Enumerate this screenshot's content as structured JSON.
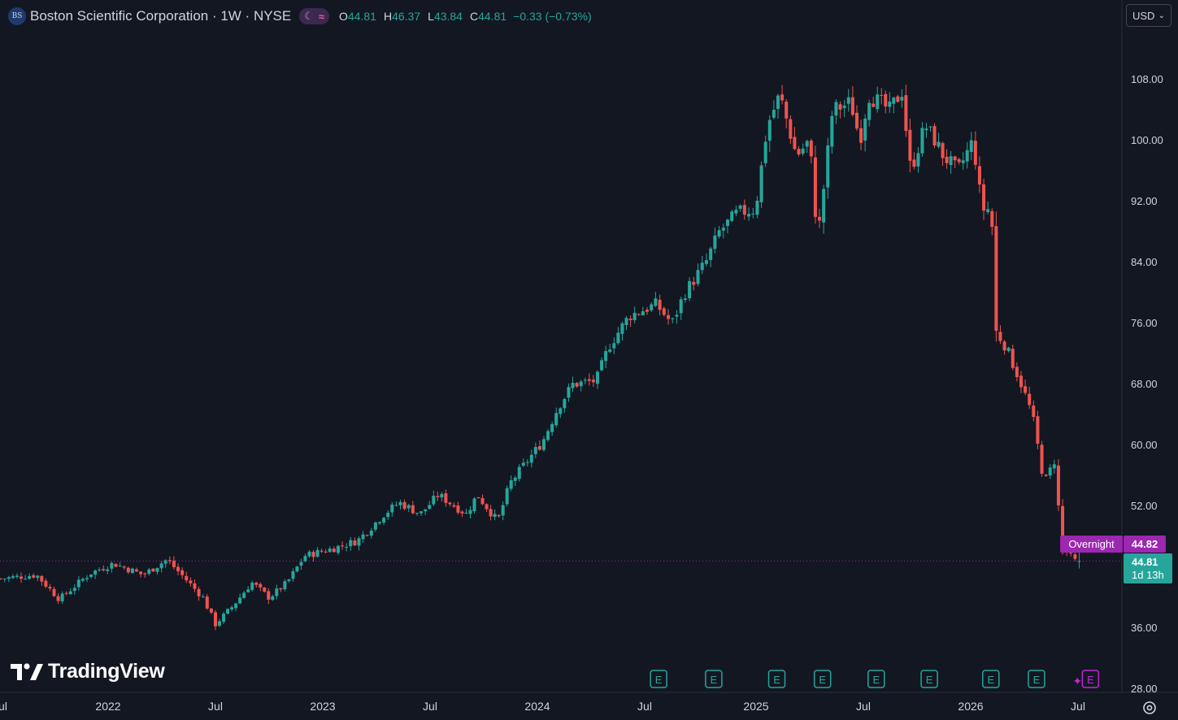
{
  "header": {
    "logo_text": "BS",
    "symbol_line": "Boston Scientific Corporation · 1W · NYSE",
    "session_icons": [
      "moon-icon",
      "wave-icon"
    ],
    "ohlc": {
      "o_label": "O",
      "o_value": "44.81",
      "h_label": "H",
      "h_value": "46.37",
      "l_label": "L",
      "l_value": "43.84",
      "c_label": "C",
      "c_value": "44.81",
      "change": "−0.33 (−0.73%)"
    }
  },
  "currency": {
    "label": "USD",
    "icon": "chevron-down-icon"
  },
  "price_axis": [
    "108.00",
    "100.00",
    "92.00",
    "84.00",
    "76.00",
    "68.00",
    "60.00",
    "52.00",
    "36.00",
    "28.00"
  ],
  "time_axis": [
    "Jul",
    "2022",
    "Jul",
    "2023",
    "Jul",
    "2024",
    "Jul",
    "2025",
    "Jul",
    "2026",
    "Jul"
  ],
  "overnight": {
    "label": "Overnight",
    "price": "44.82"
  },
  "last_price": {
    "price": "44.81",
    "countdown": "1d 13h"
  },
  "earnings_marker": "E",
  "watermark": "TradingView",
  "colors": {
    "background": "#131722",
    "up": "#26a69a",
    "down": "#ef5350",
    "overnight": "#9c27b0",
    "earnings": "#26a69a"
  },
  "chart_data": {
    "type": "candlestick",
    "x_unit": "weekly candles",
    "ylim": [
      28,
      112
    ],
    "grid": false,
    "keyframes": [
      [
        "2021-07-02",
        42.5
      ],
      [
        "2021-09-01",
        43.0
      ],
      [
        "2021-10-10",
        39.8
      ],
      [
        "2021-12-01",
        43.2
      ],
      [
        "2022-01-10",
        44.5
      ],
      [
        "2022-03-01",
        43.0
      ],
      [
        "2022-04-10",
        45.0
      ],
      [
        "2022-05-05",
        43.0
      ],
      [
        "2022-06-10",
        40.0
      ],
      [
        "2022-07-01",
        36.5
      ],
      [
        "2022-08-01",
        39.0
      ],
      [
        "2022-09-01",
        42.0
      ],
      [
        "2022-10-01",
        40.0
      ],
      [
        "2022-11-01",
        42.0
      ],
      [
        "2022-12-01",
        45.5
      ],
      [
        "2023-01-20",
        46.5
      ],
      [
        "2023-03-01",
        47.5
      ],
      [
        "2023-04-15",
        51.0
      ],
      [
        "2023-05-10",
        52.5
      ],
      [
        "2023-06-15",
        51.0
      ],
      [
        "2023-07-15",
        53.5
      ],
      [
        "2023-09-01",
        51.0
      ],
      [
        "2023-09-20",
        53.5
      ],
      [
        "2023-10-25",
        50.0
      ],
      [
        "2023-11-15",
        55.0
      ],
      [
        "2023-12-15",
        58.0
      ],
      [
        "2024-01-10",
        60.5
      ],
      [
        "2024-02-05",
        65.0
      ],
      [
        "2024-03-01",
        68.0
      ],
      [
        "2024-04-10",
        68.5
      ],
      [
        "2024-05-01",
        73.0
      ],
      [
        "2024-06-05",
        77.0
      ],
      [
        "2024-07-20",
        78.5
      ],
      [
        "2024-08-15",
        76.0
      ],
      [
        "2024-09-05",
        80.0
      ],
      [
        "2024-10-10",
        84.0
      ],
      [
        "2024-11-01",
        88.0
      ],
      [
        "2024-12-01",
        90.5
      ],
      [
        "2024-12-31",
        91.0
      ],
      [
        "2025-01-20",
        102.0
      ],
      [
        "2025-02-10",
        106.0
      ],
      [
        "2025-03-10",
        98.0
      ],
      [
        "2025-04-01",
        100.0
      ],
      [
        "2025-04-15",
        87.0
      ],
      [
        "2025-05-10",
        104.0
      ],
      [
        "2025-06-10",
        105.0
      ],
      [
        "2025-06-25",
        100.0
      ],
      [
        "2025-07-10",
        106.0
      ],
      [
        "2025-08-15",
        104.0
      ],
      [
        "2025-09-05",
        106.5
      ],
      [
        "2025-09-20",
        96.0
      ],
      [
        "2025-10-15",
        102.0
      ],
      [
        "2025-11-01",
        100.0
      ],
      [
        "2025-11-15",
        98.0
      ],
      [
        "2025-12-10",
        96.0
      ],
      [
        "2026-01-05",
        100.0
      ],
      [
        "2026-01-20",
        91.0
      ],
      [
        "2026-02-05",
        91.0
      ],
      [
        "2026-02-12",
        75.0
      ],
      [
        "2026-03-01",
        73.0
      ],
      [
        "2026-03-25",
        68.5
      ],
      [
        "2026-04-15",
        64.0
      ],
      [
        "2026-05-05",
        55.0
      ],
      [
        "2026-05-25",
        58.5
      ],
      [
        "2026-06-01",
        47.0
      ],
      [
        "2026-06-25",
        44.8
      ]
    ],
    "last_candle": {
      "open": 44.81,
      "high": 46.37,
      "low": 43.84,
      "close": 44.81
    },
    "overnight_price": 44.82,
    "earnings_dates": [
      "2024-07-24",
      "2024-10-23",
      "2025-02-05",
      "2025-04-23",
      "2025-07-23",
      "2025-10-22",
      "2026-02-04",
      "2026-04-22",
      "2026-07-22"
    ]
  }
}
